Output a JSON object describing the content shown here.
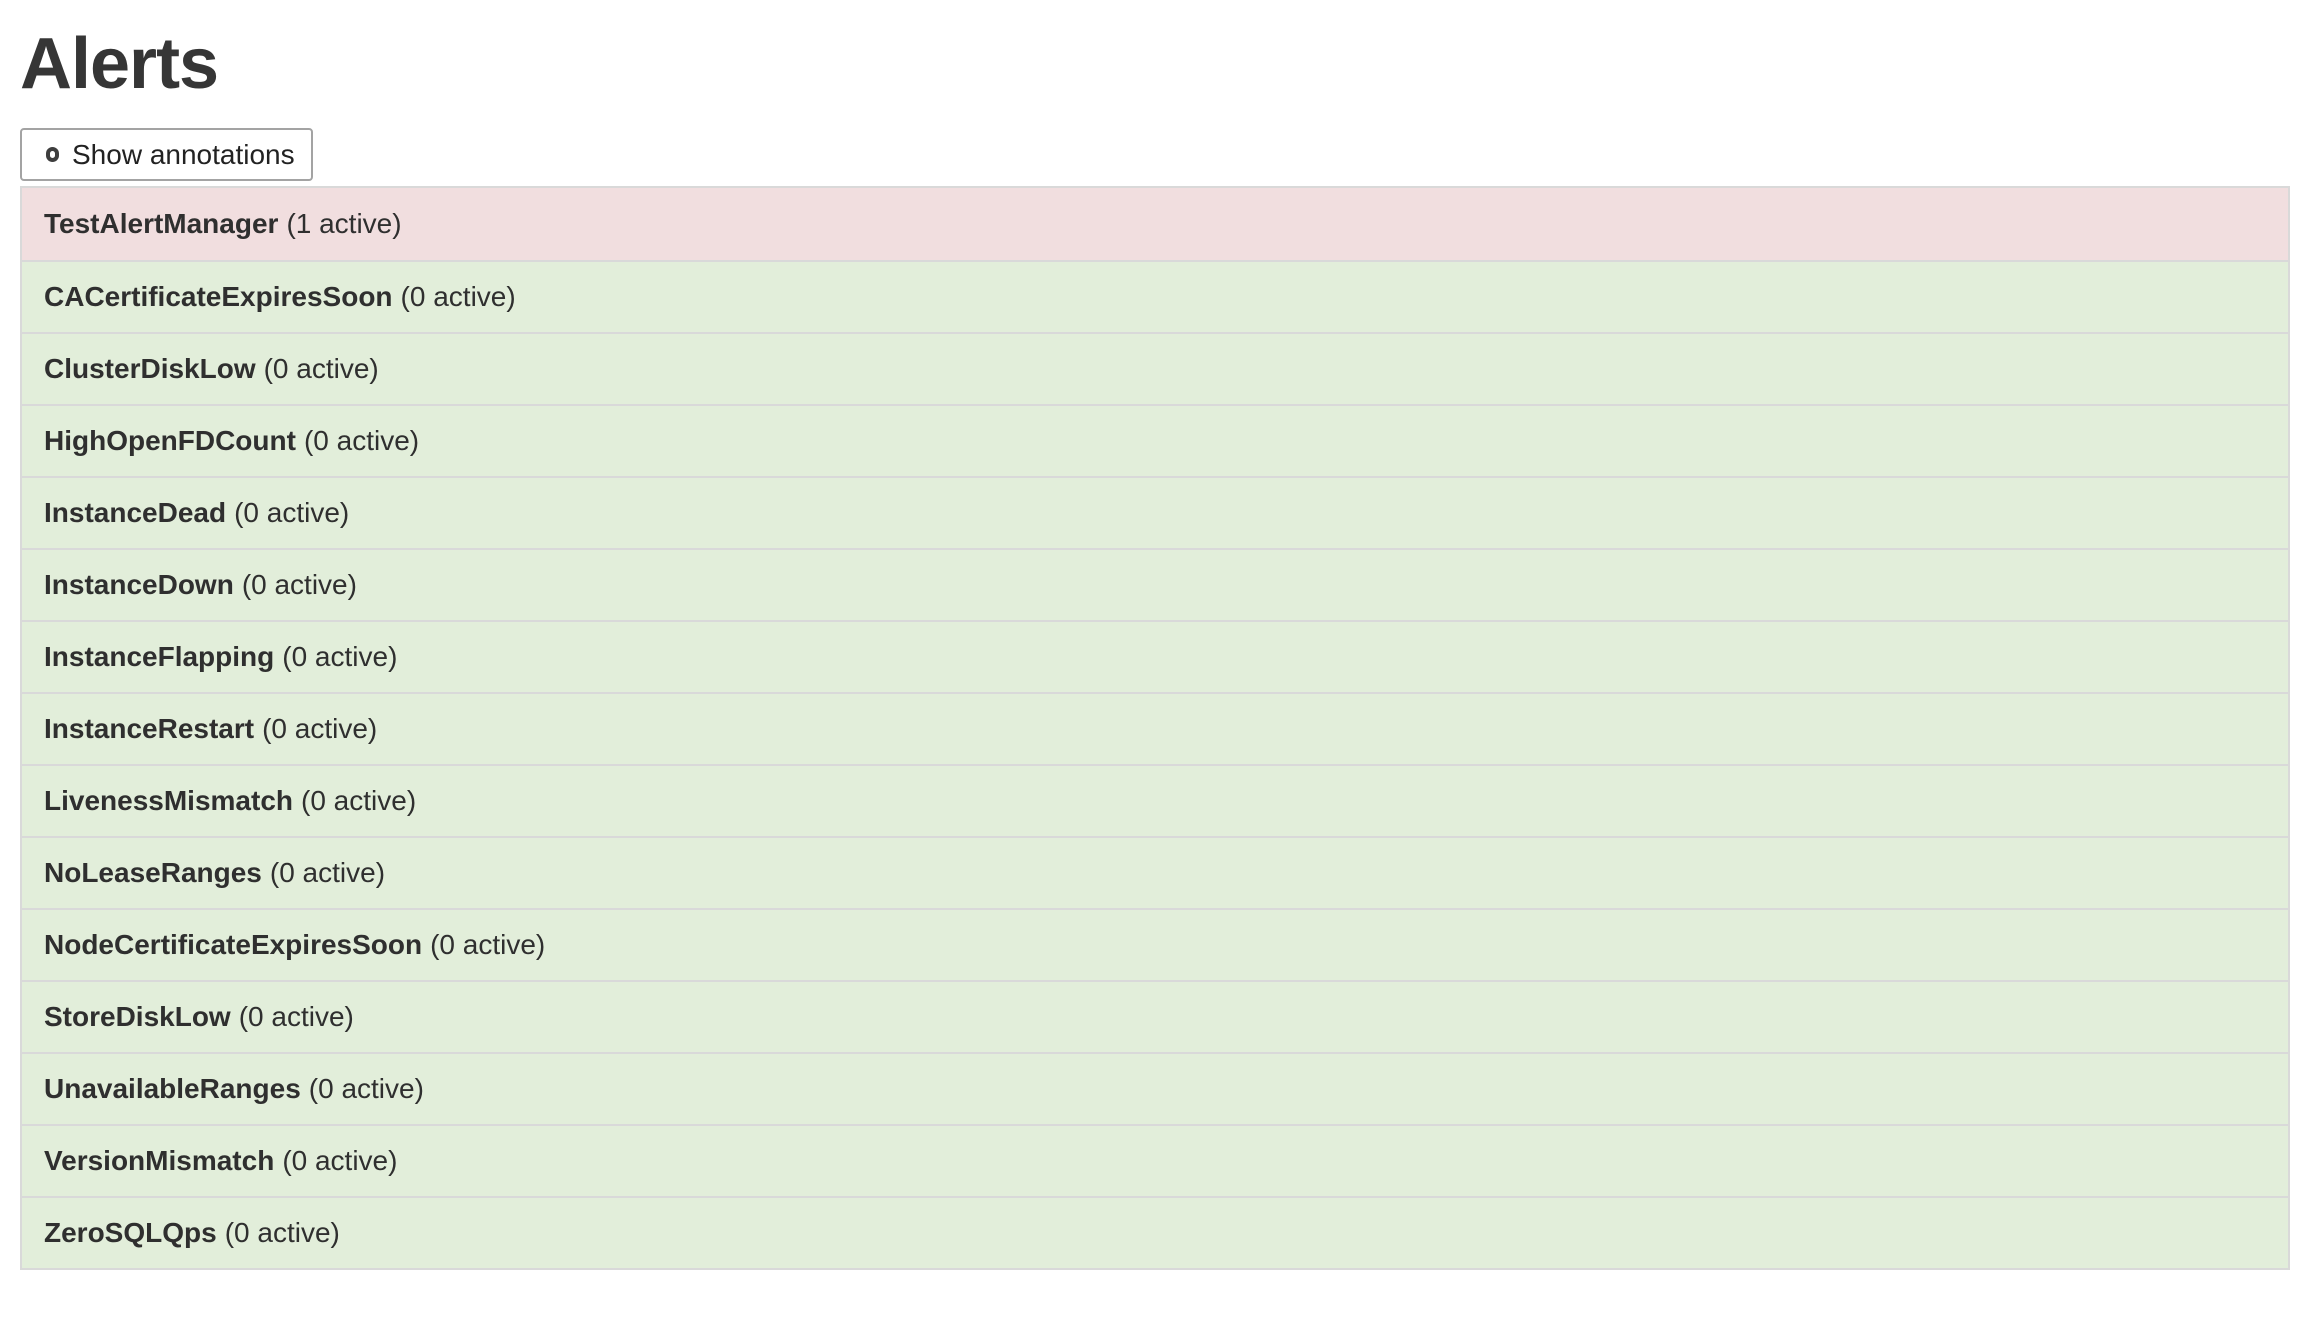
{
  "page": {
    "title": "Alerts"
  },
  "toolbar": {
    "show_annotations_label": "Show annotations",
    "annotations_checkbox_checked": false
  },
  "colors": {
    "firing_bg": "#f1dedf",
    "inactive_bg": "#e2eeda",
    "list_border": "#d9d9d9",
    "row_text": "#2f2f2f"
  },
  "alerts": {
    "rows": [
      {
        "name": "TestAlertManager",
        "active_count": 1,
        "active_label": "(1 active)",
        "status": "firing"
      },
      {
        "name": "CACertificateExpiresSoon",
        "active_count": 0,
        "active_label": "(0 active)",
        "status": "inactive"
      },
      {
        "name": "ClusterDiskLow",
        "active_count": 0,
        "active_label": "(0 active)",
        "status": "inactive"
      },
      {
        "name": "HighOpenFDCount",
        "active_count": 0,
        "active_label": "(0 active)",
        "status": "inactive"
      },
      {
        "name": "InstanceDead",
        "active_count": 0,
        "active_label": "(0 active)",
        "status": "inactive"
      },
      {
        "name": "InstanceDown",
        "active_count": 0,
        "active_label": "(0 active)",
        "status": "inactive"
      },
      {
        "name": "InstanceFlapping",
        "active_count": 0,
        "active_label": "(0 active)",
        "status": "inactive"
      },
      {
        "name": "InstanceRestart",
        "active_count": 0,
        "active_label": "(0 active)",
        "status": "inactive"
      },
      {
        "name": "LivenessMismatch",
        "active_count": 0,
        "active_label": "(0 active)",
        "status": "inactive"
      },
      {
        "name": "NoLeaseRanges",
        "active_count": 0,
        "active_label": "(0 active)",
        "status": "inactive"
      },
      {
        "name": "NodeCertificateExpiresSoon",
        "active_count": 0,
        "active_label": "(0 active)",
        "status": "inactive"
      },
      {
        "name": "StoreDiskLow",
        "active_count": 0,
        "active_label": "(0 active)",
        "status": "inactive"
      },
      {
        "name": "UnavailableRanges",
        "active_count": 0,
        "active_label": "(0 active)",
        "status": "inactive"
      },
      {
        "name": "VersionMismatch",
        "active_count": 0,
        "active_label": "(0 active)",
        "status": "inactive"
      },
      {
        "name": "ZeroSQLQps",
        "active_count": 0,
        "active_label": "(0 active)",
        "status": "inactive"
      }
    ]
  }
}
